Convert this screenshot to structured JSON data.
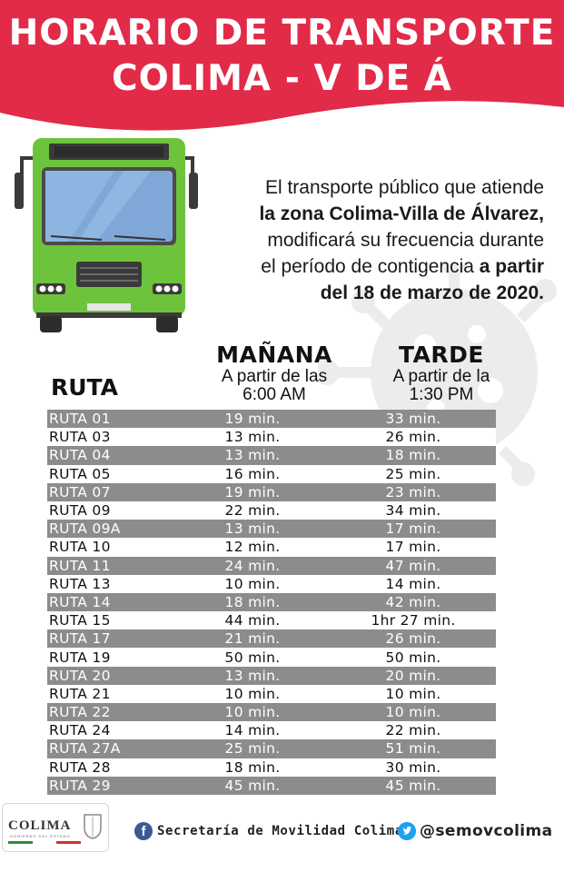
{
  "header": {
    "title_line1": "HORARIO DE TRANSPORTE",
    "title_line2": "COLIMA - V DE Á",
    "color": "#e22b48"
  },
  "intro": {
    "line1": "El transporte público que atiende",
    "line2_bold": "la zona Colima-Villa de Álvarez,",
    "line3": "modificará su frecuencia durante",
    "line4_normal": "el período de contigencia ",
    "line4_bold": "a partir",
    "line5_bold": "del 18 de marzo de 2020."
  },
  "table": {
    "ruta_header": "RUTA",
    "morning": {
      "title": "MAÑANA",
      "sub1": "A partir de las",
      "sub2": "6:00 AM"
    },
    "afternoon": {
      "title": "TARDE",
      "sub1": "A partir de la",
      "sub2": "1:30 PM"
    },
    "rows": [
      {
        "ruta": "RUTA 01",
        "manana": "19 min.",
        "tarde": "33 min."
      },
      {
        "ruta": "RUTA 03",
        "manana": "13 min.",
        "tarde": "26 min."
      },
      {
        "ruta": "RUTA 04",
        "manana": "13 min.",
        "tarde": "18 min."
      },
      {
        "ruta": "RUTA 05",
        "manana": "16 min.",
        "tarde": "25 min."
      },
      {
        "ruta": "RUTA 07",
        "manana": "19 min.",
        "tarde": "23 min."
      },
      {
        "ruta": "RUTA 09",
        "manana": "22 min.",
        "tarde": "34 min."
      },
      {
        "ruta": "RUTA 09A",
        "manana": "13 min.",
        "tarde": "17 min."
      },
      {
        "ruta": "RUTA 10",
        "manana": "12 min.",
        "tarde": "17 min."
      },
      {
        "ruta": "RUTA 11",
        "manana": "24 min.",
        "tarde": "47 min."
      },
      {
        "ruta": "RUTA 13",
        "manana": "10 min.",
        "tarde": "14 min."
      },
      {
        "ruta": "RUTA 14",
        "manana": "18 min.",
        "tarde": "42 min."
      },
      {
        "ruta": "RUTA 15",
        "manana": "44 min.",
        "tarde": "1hr 27 min."
      },
      {
        "ruta": "RUTA 17",
        "manana": "21 min.",
        "tarde": "26 min."
      },
      {
        "ruta": "RUTA 19",
        "manana": "50 min.",
        "tarde": "50 min."
      },
      {
        "ruta": "RUTA 20",
        "manana": "13 min.",
        "tarde": "20 min."
      },
      {
        "ruta": "RUTA 21",
        "manana": "10 min.",
        "tarde": "10 min."
      },
      {
        "ruta": "RUTA 22",
        "manana": "10 min.",
        "tarde": "10 min."
      },
      {
        "ruta": "RUTA 24",
        "manana": "14 min.",
        "tarde": "22 min."
      },
      {
        "ruta": "RUTA 27A",
        "manana": "25 min.",
        "tarde": "51 min."
      },
      {
        "ruta": "RUTA 28",
        "manana": "18 min.",
        "tarde": "30 min."
      },
      {
        "ruta": "RUTA 29",
        "manana": "45 min.",
        "tarde": "45 min."
      }
    ]
  },
  "footer": {
    "logo_text": "COLIMA",
    "logo_sub": "GOBIERNO DEL ESTADO",
    "facebook_icon": "facebook-icon",
    "facebook_text": "Secretaría de Movilidad Colima",
    "twitter_icon": "twitter-icon",
    "twitter_text": "@semovcolima"
  },
  "colors": {
    "accent": "#e22b48",
    "bus_green": "#6ec33c",
    "row_dark": "#8c8c8c"
  }
}
